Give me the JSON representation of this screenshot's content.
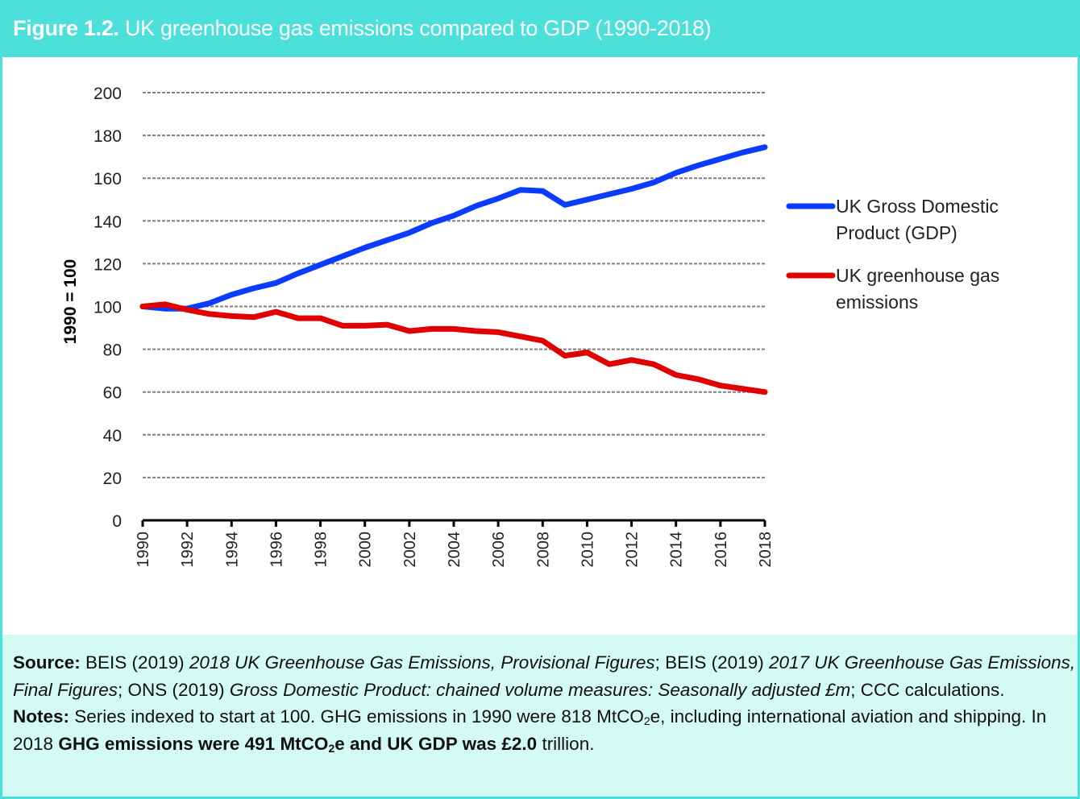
{
  "header": {
    "figure_label": "Figure 1.2.",
    "title": "UK greenhouse gas emissions compared to GDP (1990-2018)"
  },
  "colors": {
    "header_bg": "#4ce0da",
    "notes_bg": "#d3fbf3",
    "gdp_line": "#0a3cff",
    "ghg_line": "#e00000",
    "grid": "#7f7f7f"
  },
  "chart_data": {
    "type": "line",
    "title": "UK greenhouse gas emissions compared to GDP (1990-2018)",
    "xlabel": "",
    "ylabel": "1990 = 100",
    "ylim": [
      0,
      200
    ],
    "yticks": [
      0,
      20,
      40,
      60,
      80,
      100,
      120,
      140,
      160,
      180,
      200
    ],
    "xticks": [
      "1990",
      "1992",
      "1994",
      "1996",
      "1998",
      "2000",
      "2002",
      "2004",
      "2006",
      "2008",
      "2010",
      "2012",
      "2014",
      "2016",
      "2018"
    ],
    "grid": "horizontal-dashed",
    "legend_position": "right",
    "x": [
      1990,
      1991,
      1992,
      1993,
      1994,
      1995,
      1996,
      1997,
      1998,
      1999,
      2000,
      2001,
      2002,
      2003,
      2004,
      2005,
      2006,
      2007,
      2008,
      2009,
      2010,
      2011,
      2012,
      2013,
      2014,
      2015,
      2016,
      2017,
      2018
    ],
    "series": [
      {
        "name": "UK Gross Domestic Product (GDP)",
        "legend_lines": [
          "UK Gross Domestic",
          "Product (GDP)"
        ],
        "color": "#0a3cff",
        "values": [
          100,
          99,
          99,
          101.5,
          105.5,
          108.5,
          111,
          115.5,
          119.5,
          123.5,
          127.5,
          131,
          134.5,
          139,
          142.5,
          147,
          150.5,
          154.5,
          154,
          147.5,
          150,
          152.5,
          155,
          158,
          162.5,
          166,
          169,
          172,
          174.5
        ]
      },
      {
        "name": "UK greenhouse gas emissions",
        "legend_lines": [
          "UK greenhouse gas",
          "emissions"
        ],
        "color": "#e00000",
        "values": [
          100,
          101,
          98.5,
          96.5,
          95.5,
          95,
          97.5,
          94.5,
          94.5,
          91,
          91,
          91.5,
          88.5,
          89.5,
          89.5,
          88.5,
          88,
          86,
          84,
          77,
          78.5,
          73,
          75,
          73,
          68,
          66,
          63,
          61.5,
          60
        ]
      }
    ]
  },
  "notes": {
    "source_label": "Source:",
    "source_parts": [
      {
        "t": " BEIS (2019) ",
        "s": "n"
      },
      {
        "t": "2018 UK Greenhouse Gas Emissions, Provisional Figures",
        "s": "i"
      },
      {
        "t": "; BEIS (2019) ",
        "s": "n"
      },
      {
        "t": "2017 UK Greenhouse Gas Emissions, Final Figures",
        "s": "i"
      },
      {
        "t": "; ONS (2019) ",
        "s": "n"
      },
      {
        "t": "Gross Domestic Product: chained volume measures: Seasonally adjusted £m",
        "s": "i"
      },
      {
        "t": "; CCC calculations.",
        "s": "n"
      }
    ],
    "notes_label": "Notes:",
    "notes_text_1": " Series indexed to start at 100. GHG emissions in 1990 were 818 MtCO",
    "notes_sub_1": "2",
    "notes_text_2": "e, including international aviation and shipping. In 2018 ",
    "notes_bold_1": "GHG emissions were 491 MtCO",
    "notes_sub_2": "2",
    "notes_bold_2": "e and UK GDP was £2.0",
    "notes_text_3": " trillion."
  }
}
